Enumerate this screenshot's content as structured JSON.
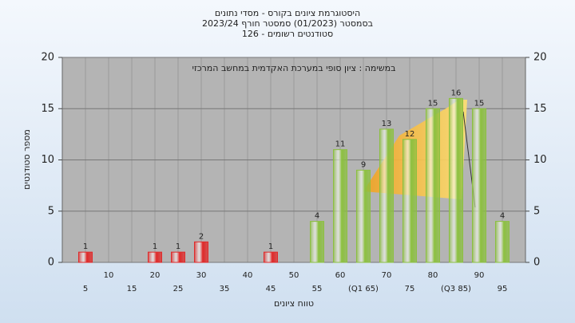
{
  "chart_data": {
    "type": "bar",
    "title": "היסטוגרמת ציונים בקורס - מסדי נתונים",
    "subtitle": "בסמסטר (01/2023) סמסטר חורף 2023/24",
    "subtitle2": "סטודנטים רשומים - 126",
    "annotation": "במשימה : ציון סופי במערכת האקדמית במחשב המרכזי",
    "x_label": "טווח ציונים",
    "y_label": "מספר סטודנטים",
    "categories": [
      "5",
      "10",
      "15",
      "20",
      "25",
      "30",
      "35",
      "40",
      "45",
      "50",
      "55",
      "60",
      "(Q1 65)",
      "70",
      "75",
      "80",
      "(Q3 85)",
      "90",
      "95"
    ],
    "values": [
      1,
      0,
      0,
      1,
      1,
      2,
      0,
      0,
      1,
      0,
      4,
      11,
      9,
      13,
      12,
      15,
      16,
      15,
      4
    ],
    "colors": [
      "#e02828",
      "#e02828",
      "#e02828",
      "#e02828",
      "#e02828",
      "#e02828",
      "#e02828",
      "#e02828",
      "#e02828",
      "#e02828",
      "#8cc040",
      "#8cc040",
      "#8cc040",
      "#8cc040",
      "#8cc040",
      "#8cc040",
      "#8cc040",
      "#8cc040",
      "#8cc040"
    ],
    "ylim": [
      0,
      20
    ],
    "yticks": [
      0,
      5,
      10,
      15,
      20
    ],
    "y2lim": [
      0,
      20
    ],
    "y2ticks": [
      0,
      5,
      10,
      15,
      20
    ],
    "grid": true
  }
}
